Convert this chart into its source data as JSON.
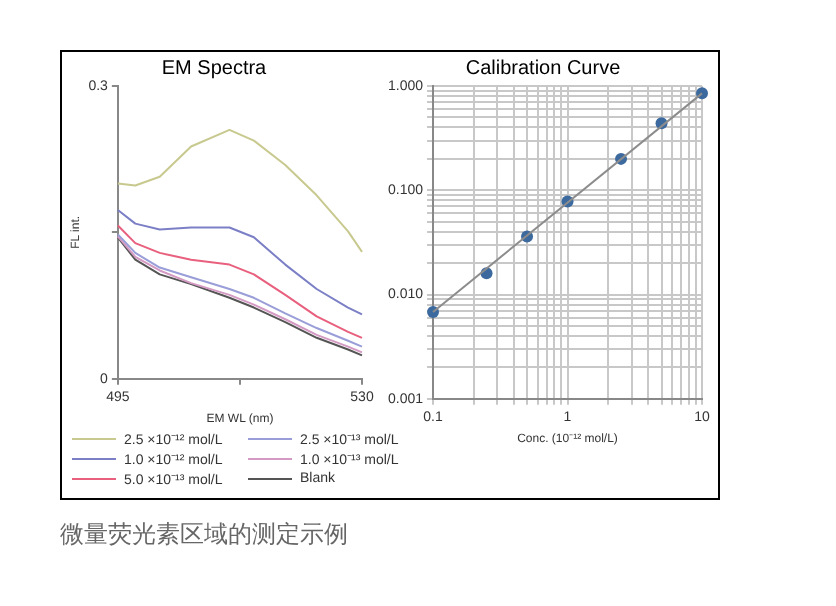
{
  "chart_data": [
    {
      "type": "line",
      "title": "EM Spectra",
      "xlabel": "EM WL (nm)",
      "ylabel": "FL int.",
      "xlim": [
        495,
        530
      ],
      "xticks": [
        495,
        {
          "value": 512.5,
          "label": null
        },
        530
      ],
      "ylim": [
        0,
        0.3
      ],
      "yticks": [
        0,
        {
          "value": 0.15,
          "label": null
        },
        0.3
      ],
      "grid": false,
      "legend": "bottom",
      "marker": "none",
      "x": [
        495,
        497.5,
        501,
        505.5,
        511,
        514.5,
        519,
        523.5,
        528,
        530
      ],
      "series": [
        {
          "name": "2.5 ×10⁻¹² mol/L",
          "color": "#c8c98e",
          "values": [
            0.2,
            0.198,
            0.207,
            0.238,
            0.255,
            0.244,
            0.219,
            0.188,
            0.151,
            0.13
          ]
        },
        {
          "name": "1.0 ×10⁻¹² mol/L",
          "color": "#7b7fc6",
          "values": [
            0.173,
            0.159,
            0.153,
            0.155,
            0.155,
            0.145,
            0.117,
            0.092,
            0.073,
            0.066
          ]
        },
        {
          "name": "5.0 ×10⁻¹³ mol/L",
          "color": "#e8607e",
          "values": [
            0.157,
            0.139,
            0.129,
            0.122,
            0.117,
            0.107,
            0.086,
            0.064,
            0.048,
            0.042
          ]
        },
        {
          "name": "2.5 ×10⁻¹³ mol/L",
          "color": "#9a9ed8",
          "values": [
            0.148,
            0.129,
            0.114,
            0.104,
            0.092,
            0.083,
            0.067,
            0.052,
            0.039,
            0.033
          ]
        },
        {
          "name": "1.0 ×10⁻¹³ mol/L",
          "color": "#d49ac4",
          "values": [
            0.146,
            0.125,
            0.111,
            0.098,
            0.086,
            0.076,
            0.061,
            0.045,
            0.033,
            0.027
          ]
        },
        {
          "name": "Blank",
          "color": "#555555",
          "values": [
            0.145,
            0.122,
            0.107,
            0.097,
            0.083,
            0.073,
            0.058,
            0.042,
            0.03,
            0.024
          ]
        }
      ],
      "annotations": [
        "微量荧光素区域的测定示例"
      ]
    },
    {
      "type": "scatter",
      "title": "Calibration Curve",
      "xlabel": "Conc. (10⁻¹² mol/L)",
      "log": "xy",
      "xlim": [
        0.1,
        10
      ],
      "ylim": [
        0.001,
        1
      ],
      "xticks": [
        0.1,
        {
          "value": 0.2,
          "label": null
        },
        {
          "value": 0.3,
          "label": null
        },
        {
          "value": 0.4,
          "label": null
        },
        {
          "value": 0.5,
          "label": null
        },
        {
          "value": 0.6,
          "label": null
        },
        {
          "value": 0.7,
          "label": null
        },
        {
          "value": 0.8,
          "label": null
        },
        {
          "value": 0.9,
          "label": null
        },
        1,
        {
          "value": 2,
          "label": null
        },
        {
          "value": 3,
          "label": null
        },
        {
          "value": 4,
          "label": null
        },
        {
          "value": 5,
          "label": null
        },
        {
          "value": 6,
          "label": null
        },
        {
          "value": 7,
          "label": null
        },
        {
          "value": 8,
          "label": null
        },
        {
          "value": 9,
          "label": null
        },
        10
      ],
      "yticks": [
        {
          "value": 0.001,
          "label": "0.001"
        },
        {
          "value": 0.002,
          "label": null
        },
        {
          "value": 0.003,
          "label": null
        },
        {
          "value": 0.004,
          "label": null
        },
        {
          "value": 0.005,
          "label": null
        },
        {
          "value": 0.006,
          "label": null
        },
        {
          "value": 0.007,
          "label": null
        },
        {
          "value": 0.008,
          "label": null
        },
        {
          "value": 0.009,
          "label": null
        },
        {
          "value": 0.01,
          "label": "0.010"
        },
        {
          "value": 0.02,
          "label": null
        },
        {
          "value": 0.03,
          "label": null
        },
        {
          "value": 0.04,
          "label": null
        },
        {
          "value": 0.05,
          "label": null
        },
        {
          "value": 0.06,
          "label": null
        },
        {
          "value": 0.07,
          "label": null
        },
        {
          "value": 0.08,
          "label": null
        },
        {
          "value": 0.09,
          "label": null
        },
        {
          "value": 0.1,
          "label": "0.100"
        },
        {
          "value": 0.2,
          "label": null
        },
        {
          "value": 0.3,
          "label": null
        },
        {
          "value": 0.4,
          "label": null
        },
        {
          "value": 0.5,
          "label": null
        },
        {
          "value": 0.6,
          "label": null
        },
        {
          "value": 0.7,
          "label": null
        },
        {
          "value": 0.8,
          "label": null
        },
        {
          "value": 0.9,
          "label": null
        },
        {
          "value": 1,
          "label": "1.000"
        }
      ],
      "grid": true,
      "legend": false,
      "marker": "circle",
      "series": [
        {
          "type": "line",
          "color": "#8c8c8c",
          "marker": "none",
          "x": [
            0.1,
            10
          ],
          "values": [
            0.0068,
            0.85
          ]
        },
        {
          "color": "#3d6a9e",
          "x": [
            0.1,
            0.25,
            0.5,
            1,
            2.5,
            5,
            10
          ],
          "values": [
            0.0068,
            0.016,
            0.036,
            0.078,
            0.2,
            0.44,
            0.85
          ]
        }
      ]
    }
  ]
}
